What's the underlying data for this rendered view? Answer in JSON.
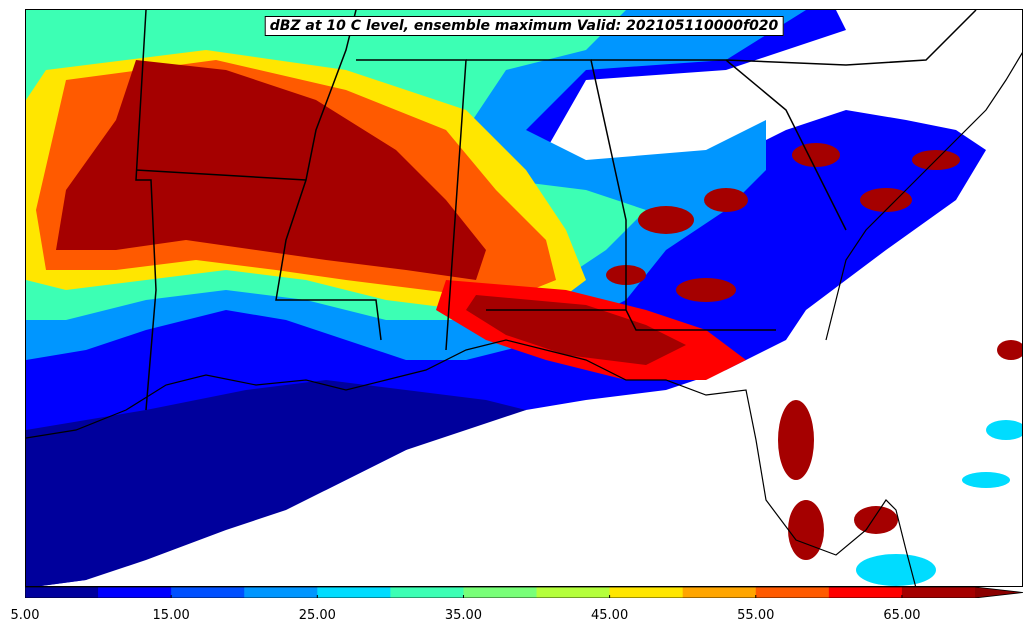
{
  "map": {
    "title": "dBZ at 10 C level, ensemble maximum Valid: 202105110000f020"
  },
  "colorbar": {
    "levels": [
      5,
      10,
      15,
      20,
      25,
      30,
      35,
      40,
      45,
      50,
      55,
      60,
      65,
      70
    ],
    "colors": [
      "#00009c",
      "#0000ff",
      "#0050ff",
      "#0096ff",
      "#00dcff",
      "#3cffb4",
      "#78ff78",
      "#b4ff3c",
      "#ffe600",
      "#ffa500",
      "#ff5a00",
      "#ff0000",
      "#a50000"
    ],
    "extend_color": "#8b0000",
    "tick_labels": [
      "5.00",
      "15.00",
      "25.00",
      "35.00",
      "45.00",
      "55.00",
      "65.00"
    ]
  }
}
